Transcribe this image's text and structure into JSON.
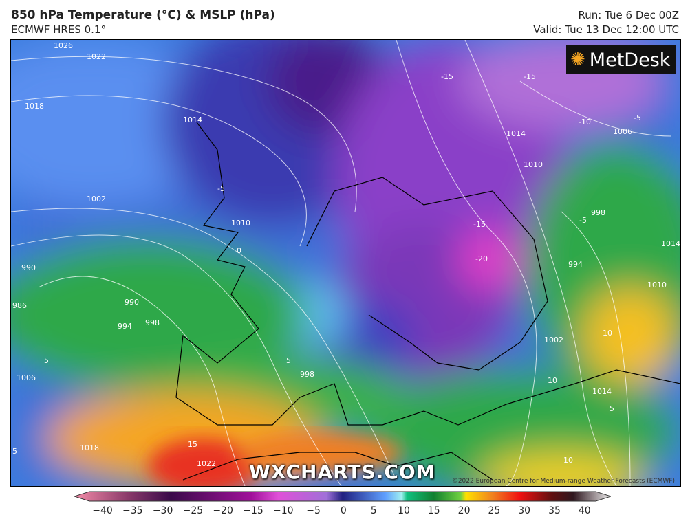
{
  "header": {
    "title": "850 hPa Temperature (°C) & MSLP (hPa)",
    "model": "ECMWF HRES 0.1°",
    "run": "Run: Tue 6 Dec 00Z",
    "valid": "Valid: Tue 13 Dec 12:00 UTC"
  },
  "logo": {
    "text": "MetDesk",
    "icon": "metdesk-star-icon"
  },
  "watermark": "WXCHARTS.COM",
  "copyright": "©2022 European Centre for Medium-range Weather Forecasts (ECMWF)",
  "colorbar": {
    "ticks": [
      "−40",
      "−35",
      "−30",
      "−25",
      "−20",
      "−15",
      "−10",
      "−5",
      "0",
      "5",
      "10",
      "15",
      "20",
      "25",
      "30",
      "35",
      "40"
    ],
    "unit": "°C"
  },
  "isobar_labels": [
    "1026",
    "1022",
    "1018",
    "1014",
    "1010",
    "1006",
    "1002",
    "998",
    "994",
    "990",
    "986",
    "990",
    "994",
    "998",
    "1002",
    "1006",
    "1010",
    "1014",
    "1018",
    "1022",
    "1014",
    "1010",
    "1014",
    "1006",
    "998",
    "994",
    "1014",
    "1010",
    "1002",
    "1014",
    "1018"
  ],
  "temp_labels": [
    "-15",
    "-15",
    "-20",
    "-15",
    "-10",
    "-5",
    "-5",
    "-5",
    "0",
    "5",
    "5",
    "5",
    "10",
    "10",
    "10",
    "15",
    "5",
    "-10"
  ],
  "colors": {
    "warm": "#f5a623",
    "cold": "#7a2fb8",
    "very_cold": "#e040c8",
    "mild": "#2ea84a",
    "cool": "#3a7fe0"
  }
}
